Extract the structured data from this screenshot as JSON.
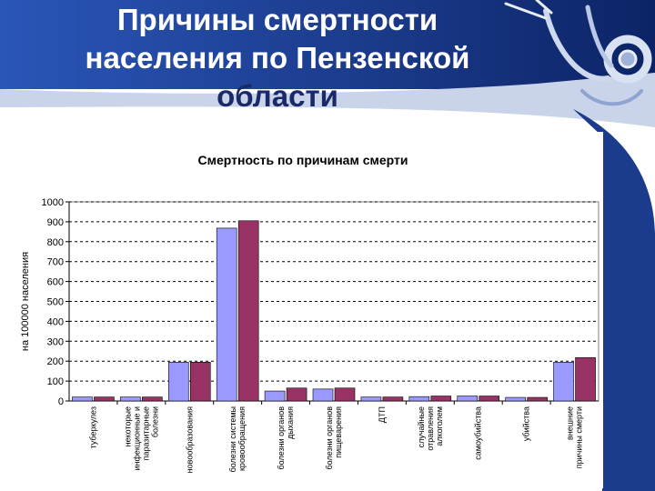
{
  "slide": {
    "title_lines": [
      "Причины смертности",
      "населения по Пензенской",
      "области"
    ],
    "colors": {
      "band": "#1b3b8c",
      "band_dark": "#0c2466",
      "title_dark": "#1a2a66"
    }
  },
  "chart_data": {
    "type": "bar",
    "title": "Смертность по причинам смерти",
    "xlabel": "",
    "ylabel": "на 100000 населения",
    "ylim": [
      0,
      1000
    ],
    "ytick_step": 100,
    "grid": true,
    "legend": "none",
    "colors": [
      "#9999ff",
      "#993366"
    ],
    "categories": [
      [
        "туберкулез"
      ],
      [
        "некоторые",
        "инфекционные и",
        "паразитарные",
        "болезни"
      ],
      [
        "новообразования"
      ],
      [
        "болезни системы",
        "кровообращения"
      ],
      [
        "болезни органов",
        "дыхания"
      ],
      [
        "болезни органов",
        "пищеварения"
      ],
      [
        "ДТП"
      ],
      [
        "случайные",
        "отравления",
        "алкоголем"
      ],
      [
        "самоубийства"
      ],
      [
        "убийства"
      ],
      [
        "внешние",
        "причины смерти"
      ]
    ],
    "series": [
      {
        "values": [
          20,
          20,
          195,
          868,
          50,
          60,
          20,
          22,
          25,
          18,
          195
        ]
      },
      {
        "values": [
          20,
          20,
          195,
          905,
          65,
          65,
          20,
          25,
          25,
          18,
          218
        ]
      }
    ]
  }
}
